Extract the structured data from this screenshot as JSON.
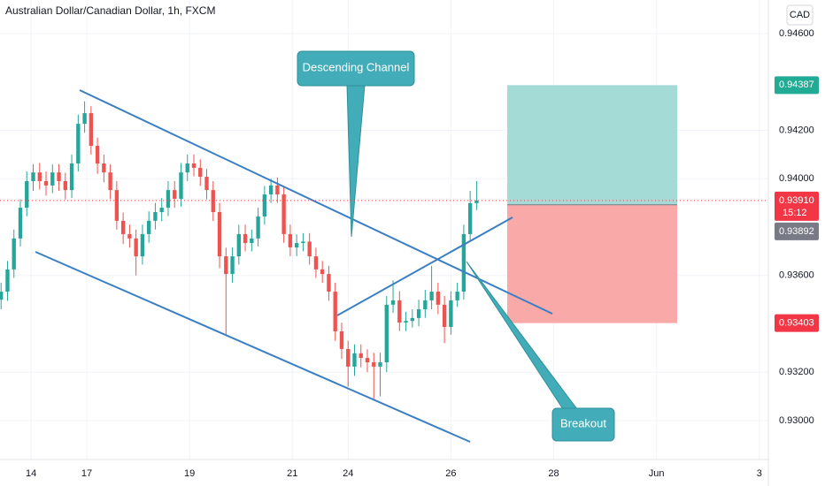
{
  "chart_data": {
    "type": "candlestick",
    "title": "Australian Dollar/Canadian Dollar, 1h, FXCM",
    "currency": "CAD",
    "up_color": "#26a69a",
    "down_color": "#ef5350",
    "xlim": [
      -14.5,
      344.2
    ],
    "ylim": [
      0.92839,
      0.94739
    ],
    "yticks": [
      {
        "value": 0.946,
        "label": "0.94600"
      },
      {
        "value": 0.942,
        "label": "0.94200"
      },
      {
        "value": 0.94,
        "label": "0.94000"
      },
      {
        "value": 0.936,
        "label": "0.93600"
      },
      {
        "value": 0.932,
        "label": "0.93200"
      },
      {
        "value": 0.93,
        "label": "0.93000"
      }
    ],
    "xticks": [
      {
        "value": 0,
        "label": "14"
      },
      {
        "value": 26,
        "label": "17"
      },
      {
        "value": 74,
        "label": "19"
      },
      {
        "value": 122,
        "label": "21"
      },
      {
        "value": 148,
        "label": "24"
      },
      {
        "value": 196,
        "label": "26"
      },
      {
        "value": 244,
        "label": "28"
      },
      {
        "value": 292,
        "label": "Jun"
      },
      {
        "value": 340,
        "label": "3"
      }
    ],
    "x": [
      -14,
      -11,
      -8,
      -5,
      -2,
      1,
      4,
      7,
      10,
      13,
      16,
      19,
      22,
      25,
      28,
      31,
      34,
      37,
      40,
      43,
      46,
      49,
      52,
      55,
      58,
      61,
      64,
      67,
      70,
      73,
      76,
      79,
      82,
      85,
      88,
      91,
      94,
      97,
      100,
      103,
      106,
      109,
      112,
      115,
      118,
      121,
      124,
      127,
      130,
      133,
      136,
      139,
      142,
      145,
      148,
      151,
      154,
      157,
      160,
      163,
      166,
      169,
      172,
      175,
      178,
      181,
      184,
      187,
      190,
      193,
      196,
      199,
      202,
      205,
      208
    ],
    "open": [
      0.935,
      0.93533,
      0.93625,
      0.93753,
      0.9388,
      0.9399,
      0.94026,
      0.9399,
      0.93972,
      0.94026,
      0.9399,
      0.93953,
      0.94063,
      0.94227,
      0.94271,
      0.94136,
      0.94063,
      0.94026,
      0.93953,
      0.93826,
      0.93771,
      0.93753,
      0.93679,
      0.93771,
      0.93826,
      0.93862,
      0.9388,
      0.93953,
      0.93917,
      0.94026,
      0.94063,
      0.94045,
      0.94008,
      0.93953,
      0.93862,
      0.93679,
      0.93606,
      0.93679,
      0.93771,
      0.93734,
      0.93753,
      0.93844,
      0.93935,
      0.93972,
      0.93935,
      0.93771,
      0.93716,
      0.93734,
      0.9374,
      0.93679,
      0.93625,
      0.93606,
      0.93533,
      0.93369,
      0.93296,
      0.93223,
      0.93278,
      0.93259,
      0.93241,
      0.93223,
      0.93241,
      0.93479,
      0.93497,
      0.93405,
      0.93412,
      0.93424,
      0.9346,
      0.93497,
      0.93533,
      0.93479,
      0.93387,
      0.93497,
      0.93533,
      0.93771,
      0.93899
    ],
    "high": [
      0.9357,
      0.9366,
      0.9379,
      0.93915,
      0.9403,
      0.9406,
      0.94065,
      0.9403,
      0.9406,
      0.9406,
      0.94025,
      0.941,
      0.94265,
      0.9432,
      0.943,
      0.9417,
      0.941,
      0.9406,
      0.9399,
      0.9386,
      0.9381,
      0.9379,
      0.9381,
      0.93865,
      0.939,
      0.9392,
      0.9399,
      0.9399,
      0.94065,
      0.941,
      0.941,
      0.9408,
      0.9404,
      0.9399,
      0.939,
      0.93715,
      0.93715,
      0.9381,
      0.9381,
      0.9379,
      0.9388,
      0.9397,
      0.94,
      0.94005,
      0.9397,
      0.9381,
      0.9377,
      0.93775,
      0.93775,
      0.93715,
      0.9366,
      0.9364,
      0.9357,
      0.93405,
      0.9333,
      0.93315,
      0.93315,
      0.93295,
      0.9328,
      0.9328,
      0.93515,
      0.9358,
      0.93535,
      0.9345,
      0.9346,
      0.935,
      0.9354,
      0.9364,
      0.9357,
      0.93515,
      0.93535,
      0.9357,
      0.9381,
      0.9395,
      0.9399
    ],
    "low": [
      0.9346,
      0.93495,
      0.9359,
      0.9372,
      0.93845,
      0.9395,
      0.93955,
      0.9393,
      0.9394,
      0.9395,
      0.93915,
      0.9392,
      0.9403,
      0.9419,
      0.941,
      0.9402,
      0.93985,
      0.93915,
      0.9379,
      0.9373,
      0.93715,
      0.936,
      0.93645,
      0.93735,
      0.9379,
      0.93825,
      0.93845,
      0.9388,
      0.93885,
      0.9399,
      0.9401,
      0.9397,
      0.93915,
      0.93825,
      0.9363,
      0.9335,
      0.9357,
      0.93645,
      0.937,
      0.937,
      0.9372,
      0.9381,
      0.939,
      0.939,
      0.93735,
      0.9368,
      0.9368,
      0.937,
      0.93645,
      0.9359,
      0.9357,
      0.93495,
      0.9333,
      0.93255,
      0.9314,
      0.93185,
      0.9322,
      0.932,
      0.9309,
      0.931,
      0.932,
      0.93445,
      0.9337,
      0.9337,
      0.93385,
      0.9339,
      0.93425,
      0.9346,
      0.9344,
      0.9332,
      0.93355,
      0.9347,
      0.935,
      0.9374,
      0.9387
    ],
    "close": [
      0.93533,
      0.93625,
      0.93753,
      0.9388,
      0.9399,
      0.94026,
      0.9399,
      0.93972,
      0.94026,
      0.9399,
      0.93953,
      0.94063,
      0.94227,
      0.94271,
      0.94136,
      0.94063,
      0.94026,
      0.93953,
      0.93826,
      0.93771,
      0.93753,
      0.93679,
      0.93771,
      0.93826,
      0.93862,
      0.9388,
      0.93953,
      0.93917,
      0.94026,
      0.94063,
      0.94045,
      0.94008,
      0.93953,
      0.93862,
      0.93679,
      0.93606,
      0.93679,
      0.93771,
      0.93734,
      0.93753,
      0.93844,
      0.93935,
      0.93972,
      0.93935,
      0.93771,
      0.93716,
      0.93734,
      0.9374,
      0.93679,
      0.93625,
      0.93606,
      0.93533,
      0.93369,
      0.93296,
      0.93223,
      0.93278,
      0.93259,
      0.93241,
      0.93223,
      0.93241,
      0.93479,
      0.93497,
      0.93405,
      0.93412,
      0.93424,
      0.9346,
      0.93497,
      0.93533,
      0.93479,
      0.93387,
      0.93497,
      0.93533,
      0.93771,
      0.93899,
      0.9391
    ],
    "last_price": {
      "value": 0.9391,
      "label": "0.93910",
      "color": "#f23645"
    },
    "countdown": "15:12",
    "position": {
      "target": {
        "value": 0.94387,
        "label": "0.94387"
      },
      "entry": {
        "value": 0.93892,
        "label": "0.93892"
      },
      "stop": {
        "value": 0.93403,
        "label": "0.93403"
      },
      "profit_color": "#a5dbd6",
      "loss_color": "#f9aaa8",
      "target_color": "#22ab94",
      "entry_color": "#787b86",
      "stop_color": "#f23645"
    },
    "annotations": [
      "Descending Channel",
      "Breakout"
    ],
    "grid": true
  }
}
